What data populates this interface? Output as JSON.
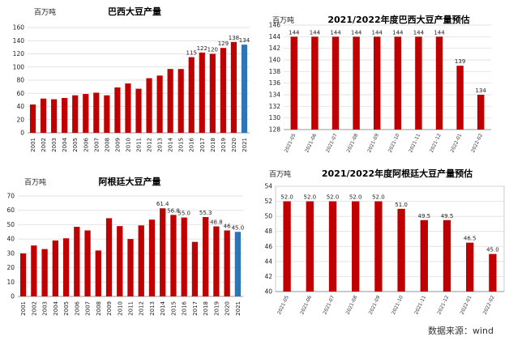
{
  "source": "数据来源：wind",
  "chart_data": [
    {
      "type": "bar",
      "title": "巴西大豆产量",
      "ylabel": "百万吨",
      "categories": [
        "2001",
        "2002",
        "2003",
        "2004",
        "2005",
        "2006",
        "2007",
        "2008",
        "2009",
        "2010",
        "2011",
        "2012",
        "2013",
        "2014",
        "2015",
        "2016",
        "2017",
        "2018",
        "2019",
        "2020",
        "2021"
      ],
      "values": [
        43,
        52,
        51,
        53,
        57,
        59,
        61,
        57,
        69,
        75,
        67,
        83,
        87,
        97,
        97,
        115,
        122,
        120,
        129,
        138,
        134
      ],
      "labels": {
        "15": "115",
        "16": "122",
        "17": "120",
        "18": "129",
        "19": "138",
        "20": "134"
      },
      "ylim": [
        0,
        160
      ],
      "yticks": [
        0,
        20,
        40,
        60,
        80,
        100,
        120,
        140,
        160
      ],
      "grid": true,
      "highlight_index": 20,
      "colors": {
        "bar": "#c00000",
        "highlight": "#2e75b6"
      }
    },
    {
      "type": "bar",
      "title": "2021/2022年度巴西大豆产量预估",
      "ylabel": "百万吨",
      "categories": [
        "2021-05",
        "2021-06",
        "2021-07",
        "2021-08",
        "2021-09",
        "2021-10",
        "2021-11",
        "2021-12",
        "2022-01",
        "2022-02"
      ],
      "values": [
        144,
        144,
        144,
        144,
        144,
        144,
        144,
        144,
        139,
        134
      ],
      "labels": [
        "144",
        "144",
        "144",
        "144",
        "144",
        "144",
        "144",
        "144",
        "139",
        "134"
      ],
      "ylim": [
        128,
        146
      ],
      "yticks": [
        128,
        130,
        132,
        134,
        136,
        138,
        140,
        142,
        144,
        146
      ],
      "grid": true,
      "colors": {
        "bar": "#c00000"
      }
    },
    {
      "type": "bar",
      "title": "阿根廷大豆产量",
      "ylabel": "百万吨",
      "categories": [
        "2001",
        "2002",
        "2003",
        "2004",
        "2005",
        "2006",
        "2007",
        "2008",
        "2009",
        "2010",
        "2011",
        "2012",
        "2013",
        "2014",
        "2015",
        "2016",
        "2017",
        "2018",
        "2019",
        "2020",
        "2021"
      ],
      "values": [
        30,
        35.5,
        33,
        39,
        40.5,
        48.5,
        46,
        32,
        54.5,
        49,
        40,
        49.5,
        53.5,
        61.4,
        56.8,
        55,
        38,
        55.3,
        48.8,
        46,
        45
      ],
      "labels": {
        "13": "61.4",
        "14": "56.8",
        "15": "55.0",
        "17": "55.3",
        "18": "48.8",
        "19": "46",
        "20": "45.0"
      },
      "ylim": [
        0,
        70
      ],
      "yticks": [
        0,
        10,
        20,
        30,
        40,
        50,
        60,
        70
      ],
      "grid": true,
      "highlight_index": 20,
      "colors": {
        "bar": "#c00000",
        "highlight": "#2e75b6"
      }
    },
    {
      "type": "bar",
      "title": "2021/2022年度阿根廷大豆产量预估",
      "ylabel": "百万吨",
      "categories": [
        "2021-05",
        "2021-06",
        "2021-07",
        "2021-08",
        "2021-09",
        "2021-10",
        "2021-11",
        "2021-12",
        "2022-01",
        "2022-02"
      ],
      "values": [
        52,
        52,
        52,
        52,
        52,
        51,
        49.5,
        49.5,
        46.5,
        45
      ],
      "labels": [
        "52.0",
        "52.0",
        "52.0",
        "52.0",
        "52.0",
        "51.0",
        "49.5",
        "49.5",
        "46.5",
        "45.0"
      ],
      "ylim": [
        40,
        54
      ],
      "yticks": [
        40,
        42,
        44,
        46,
        48,
        50,
        52,
        54
      ],
      "grid": true,
      "colors": {
        "bar": "#c00000"
      }
    }
  ]
}
